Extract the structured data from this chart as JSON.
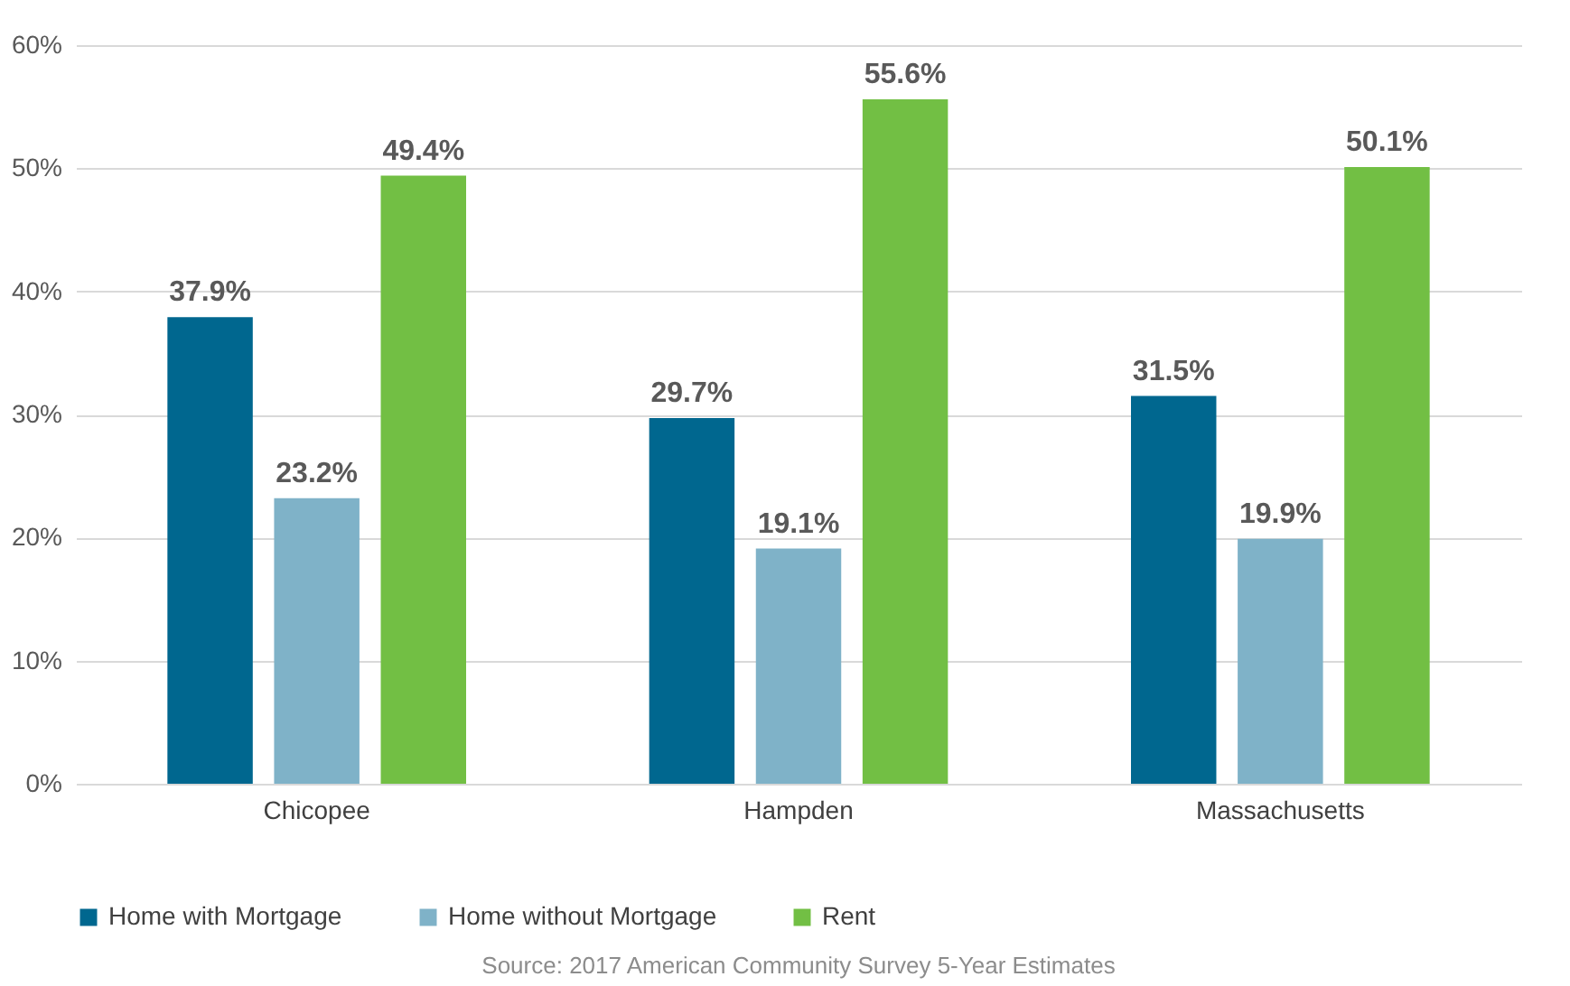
{
  "chart_data": {
    "type": "bar",
    "categories": [
      "Chicopee",
      "Hampden",
      "Massachusetts"
    ],
    "series": [
      {
        "name": "Home with Mortgage",
        "color": "#00678f",
        "values": [
          37.9,
          29.7,
          31.5
        ],
        "value_labels": [
          "37.9%",
          "29.7%",
          "31.5%"
        ]
      },
      {
        "name": "Home without Mortgage",
        "color": "#7fb2c8",
        "values": [
          23.2,
          19.1,
          19.9
        ],
        "value_labels": [
          "23.2%",
          "19.1%",
          "19.9%"
        ]
      },
      {
        "name": "Rent",
        "color": "#72bf44",
        "values": [
          49.4,
          55.6,
          50.1
        ],
        "value_labels": [
          "49.4%",
          "55.6%",
          "50.1%"
        ]
      }
    ],
    "ylim": [
      0,
      60
    ],
    "yticks": [
      {
        "value": 0,
        "label": "0%"
      },
      {
        "value": 10,
        "label": "10%"
      },
      {
        "value": 20,
        "label": "20%"
      },
      {
        "value": 30,
        "label": "30%"
      },
      {
        "value": 40,
        "label": "40%"
      },
      {
        "value": 50,
        "label": "50%"
      },
      {
        "value": 60,
        "label": "60%"
      }
    ],
    "grid": "y",
    "legend": "bottom",
    "annotations": [
      "Source: 2017 American Community Survey 5-Year Estimates"
    ]
  }
}
